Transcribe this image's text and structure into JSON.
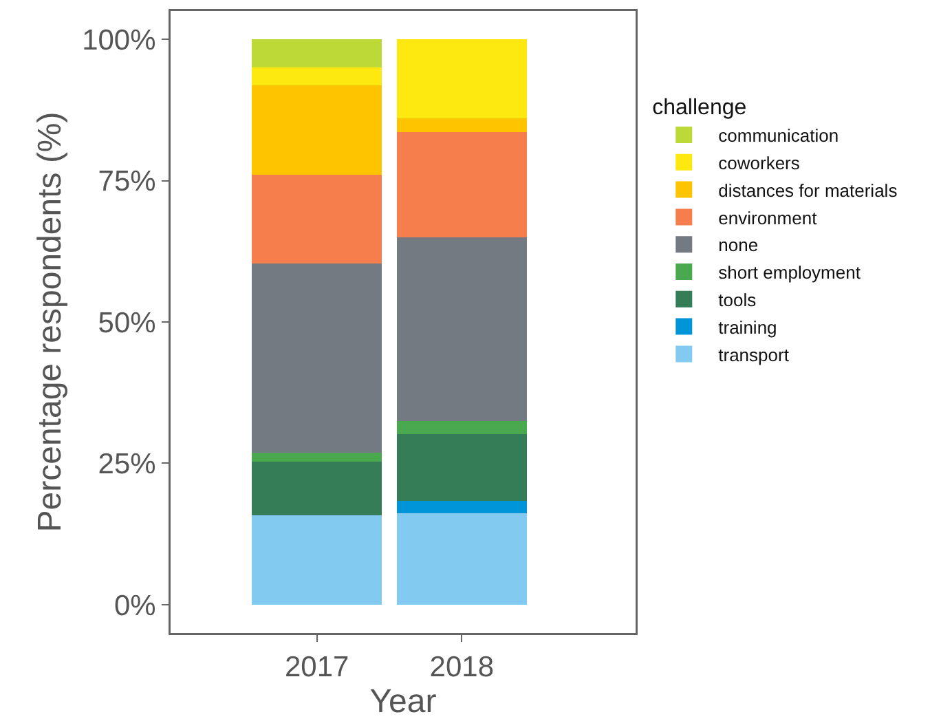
{
  "chart_data": {
    "type": "bar",
    "stacked": true,
    "xlabel": "Year",
    "ylabel": "Percentage respondents (%)",
    "legend_title": "challenge",
    "legend": "right",
    "grid": false,
    "categories": [
      "2017",
      "2018"
    ],
    "ylim": [
      -5,
      105
    ],
    "yticks": [
      {
        "value": 0,
        "label": "0%"
      },
      {
        "value": 25,
        "label": "25%"
      },
      {
        "value": 50,
        "label": "50%"
      },
      {
        "value": 75,
        "label": "75%"
      },
      {
        "value": 100,
        "label": "100%"
      }
    ],
    "series": [
      {
        "name": "transport",
        "color": "#82caf0",
        "values": [
          15.8,
          16.2
        ]
      },
      {
        "name": "training",
        "color": "#0094d8",
        "values": [
          0,
          2.2
        ]
      },
      {
        "name": "tools",
        "color": "#347d56",
        "values": [
          9.5,
          11.8
        ]
      },
      {
        "name": "short employment",
        "color": "#4aa84f",
        "values": [
          1.6,
          2.3
        ]
      },
      {
        "name": "none",
        "color": "#737a82",
        "values": [
          33.4,
          32.5
        ]
      },
      {
        "name": "environment",
        "color": "#f57e4c",
        "values": [
          15.8,
          18.6
        ]
      },
      {
        "name": "distances for materials",
        "color": "#fec400",
        "values": [
          15.8,
          2.4
        ]
      },
      {
        "name": "coworkers",
        "color": "#fde910",
        "values": [
          3.1,
          14.0
        ]
      },
      {
        "name": "communication",
        "color": "#bcd937",
        "values": [
          5.0,
          0
        ]
      }
    ]
  }
}
